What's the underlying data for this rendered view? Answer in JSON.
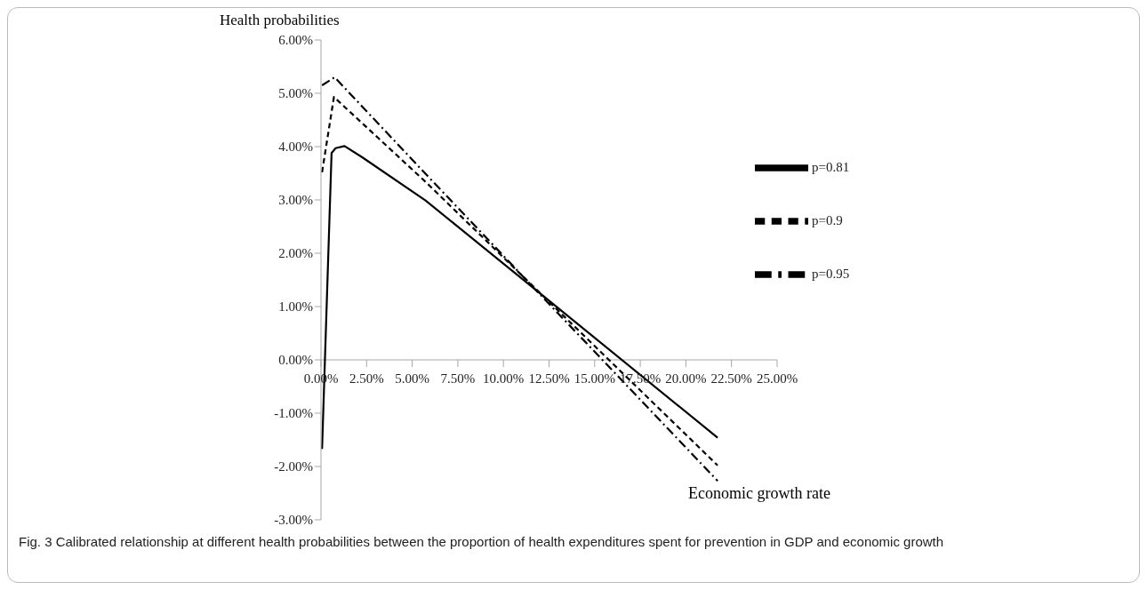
{
  "chart_data": {
    "type": "line",
    "xlabel": "Economic growth rate",
    "ylabel": "Health probabilities",
    "annotations": [
      "Fig. 3 Calibrated relationship at different health probabilities between the proportion of health expenditures spent for prevention in GDP and economic growth"
    ],
    "series": [
      {
        "name": "p=0.81",
        "color": "#000000",
        "line_style": "solid",
        "x": [
          0.06,
          0.58,
          0.8,
          1.29,
          2.26,
          5.73,
          12.5,
          21.74
        ],
        "values": [
          -1.67,
          3.88,
          3.97,
          4.01,
          3.8,
          2.99,
          1.11,
          -1.46
        ]
      },
      {
        "name": "p=0.9",
        "color": "#000000",
        "line_style": "dashed",
        "x": [
          0.06,
          0.71,
          5.73,
          12.5,
          21.74
        ],
        "values": [
          3.52,
          4.93,
          3.34,
          1.09,
          -1.98
        ]
      },
      {
        "name": "p=0.95",
        "color": "#000000",
        "line_style": "dashdot",
        "x": [
          0.06,
          0.75,
          5.73,
          12.5,
          21.74
        ],
        "values": [
          5.15,
          5.3,
          3.49,
          1.05,
          -2.27
        ]
      }
    ],
    "xlim": [
      0,
      25
    ],
    "xticks": [
      {
        "value": 0,
        "label": "0.00%"
      },
      {
        "value": 2.5,
        "label": "2.50%"
      },
      {
        "value": 5,
        "label": "5.00%"
      },
      {
        "value": 7.5,
        "label": "7.50%"
      },
      {
        "value": 10,
        "label": "10.00%"
      },
      {
        "value": 12.5,
        "label": "12.50%"
      },
      {
        "value": 15,
        "label": "15.00%"
      },
      {
        "value": 17.5,
        "label": "17.50%"
      },
      {
        "value": 20,
        "label": "20.00%"
      },
      {
        "value": 22.5,
        "label": "22.50%"
      },
      {
        "value": 25,
        "label": "25.00%"
      }
    ],
    "ylim": [
      -3,
      6
    ],
    "yticks": [
      {
        "value": -3,
        "label": "-3.00%"
      },
      {
        "value": -2,
        "label": "-2.00%"
      },
      {
        "value": -1,
        "label": "-1.00%"
      },
      {
        "value": 0,
        "label": "0.00%"
      },
      {
        "value": 1,
        "label": "1.00%"
      },
      {
        "value": 2,
        "label": "2.00%"
      },
      {
        "value": 3,
        "label": "3.00%"
      },
      {
        "value": 4,
        "label": "4.00%"
      },
      {
        "value": 5,
        "label": "5.00%"
      },
      {
        "value": 6,
        "label": "6.00%"
      }
    ],
    "grid": false,
    "legend": "right",
    "marker": "none"
  }
}
